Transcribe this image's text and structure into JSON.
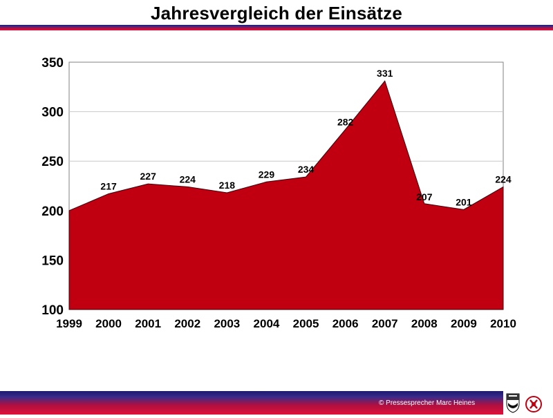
{
  "header": {
    "title": "Jahresvergleich der Einsätze"
  },
  "footer": {
    "credit": "© Pressesprecher Marc Heines"
  },
  "colors": {
    "area_fill": "#c00010",
    "area_stroke": "#3a0008",
    "band_dark": "#1c1a6e",
    "band_red": "#e0103a"
  },
  "chart_data": {
    "type": "area",
    "title": "Jahresvergleich der Einsätze",
    "xlabel": "",
    "ylabel": "",
    "x": [
      "1999",
      "2000",
      "2001",
      "2002",
      "2003",
      "2004",
      "2005",
      "2006",
      "2007",
      "2008",
      "2009",
      "2010"
    ],
    "values": [
      200,
      217,
      227,
      224,
      218,
      229,
      234,
      282,
      331,
      207,
      201,
      224
    ],
    "data_labels": [
      "",
      "217",
      "227",
      "224",
      "218",
      "229",
      "234",
      "282",
      "331",
      "207",
      "201",
      "224"
    ],
    "ylim": [
      100,
      350
    ],
    "yticks": [
      "100",
      "150",
      "200",
      "250",
      "300",
      "350"
    ],
    "grid": true
  }
}
